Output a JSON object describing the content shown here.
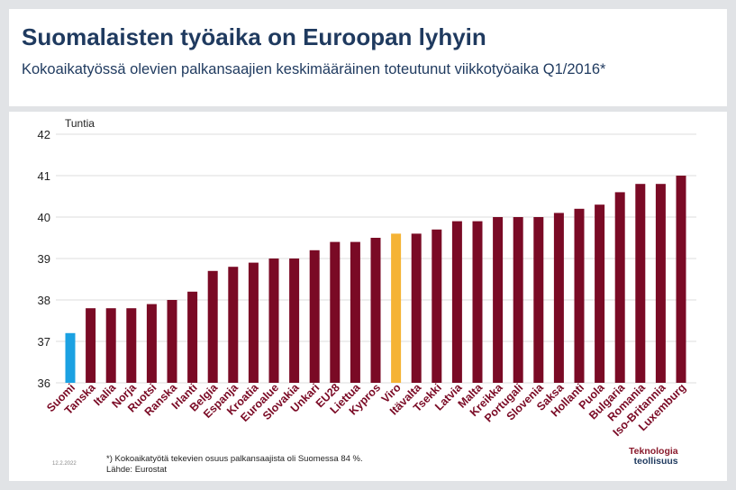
{
  "header": {
    "title": "Suomalaisten työaika on Euroopan lyhyin",
    "subtitle": "Kokoaikatyössä olevien palkansaajien keskimääräinen toteutunut viikkotyöaika Q1/2016*"
  },
  "footer": {
    "date": "12.2.2022",
    "note": "*) Kokoaikatyötä tekevien osuus palkansaajista oli Suomessa 84 %.",
    "source": "Lähde: Eurostat",
    "logo_line1": "Teknologia",
    "logo_line2": "teollisuus"
  },
  "colors": {
    "default": "#7a0a25",
    "finland": "#1ba1e2",
    "estonia": "#f5b335",
    "grid": "#dddddd",
    "axis_text": "#222222",
    "label_text": "#7a0a25"
  },
  "chart_data": {
    "type": "bar",
    "title": "Suomalaisten työaika on Euroopan lyhyin",
    "ylabel": "Tuntia",
    "ylim": [
      36,
      42
    ],
    "yticks": [
      36,
      37,
      38,
      39,
      40,
      41,
      42
    ],
    "grid": true,
    "categories": [
      "Suomi",
      "Tanska",
      "Italia",
      "Norja",
      "Ruotsi",
      "Ranska",
      "Irlanti",
      "Belgia",
      "Espanja",
      "Kroatia",
      "Euroalue",
      "Slovakia",
      "Unkari",
      "EU28",
      "Liettua",
      "Kypros",
      "Viro",
      "Itävalta",
      "Tsekki",
      "Latvia",
      "Malta",
      "Kreikka",
      "Portugali",
      "Slovenia",
      "Saksa",
      "Hollanti",
      "Puola",
      "Bulgaria",
      "Romania",
      "Iso-Britannia",
      "Luxemburg"
    ],
    "values": [
      37.2,
      37.8,
      37.8,
      37.8,
      37.9,
      38.0,
      38.2,
      38.7,
      38.8,
      38.9,
      39.0,
      39.0,
      39.2,
      39.4,
      39.4,
      39.5,
      39.6,
      39.6,
      39.7,
      39.9,
      39.9,
      40.0,
      40.0,
      40.0,
      40.1,
      40.2,
      40.3,
      40.6,
      40.8,
      40.8,
      41.0
    ],
    "highlight": {
      "Suomi": "finland",
      "Viro": "estonia"
    }
  }
}
